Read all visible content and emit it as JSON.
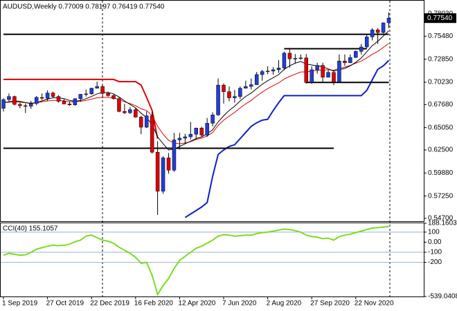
{
  "chart_data": [
    {
      "type": "candlestick",
      "title": "AUDUSD,Weekly  0.77009 0.78197 0.76419 0.77540",
      "open": [
        0.6725,
        0.6825,
        0.686,
        0.677,
        0.6755,
        0.675,
        0.678,
        0.685,
        0.684,
        0.69,
        0.686,
        0.6805,
        0.6775,
        0.6765,
        0.6835,
        0.6885,
        0.689,
        0.6955,
        0.6975,
        0.6895,
        0.687,
        0.6835,
        0.669,
        0.6675,
        0.671,
        0.6625,
        0.651,
        0.664,
        0.6225,
        0.578,
        0.616,
        0.602,
        0.6365,
        0.6385,
        0.64,
        0.643,
        0.65,
        0.642,
        0.6555,
        0.665,
        0.699,
        0.6915,
        0.6845,
        0.686,
        0.6955,
        0.6975,
        0.6995,
        0.711,
        0.7145,
        0.715,
        0.7165,
        0.7185,
        0.7355,
        0.729,
        0.7295,
        0.73,
        0.702,
        0.7165,
        0.7215,
        0.708,
        0.7135,
        0.7025,
        0.7265,
        0.7245,
        0.7305,
        0.7375,
        0.7425,
        0.754,
        0.762,
        0.759,
        0.77009
      ],
      "high": [
        0.684,
        0.6895,
        0.687,
        0.679,
        0.678,
        0.681,
        0.6865,
        0.6895,
        0.693,
        0.6915,
        0.6875,
        0.683,
        0.68,
        0.684,
        0.689,
        0.694,
        0.696,
        0.703,
        0.699,
        0.6915,
        0.6885,
        0.685,
        0.6775,
        0.674,
        0.673,
        0.664,
        0.669,
        0.6685,
        0.635,
        0.618,
        0.6215,
        0.6445,
        0.6445,
        0.6435,
        0.657,
        0.6505,
        0.6515,
        0.6615,
        0.668,
        0.7065,
        0.701,
        0.6975,
        0.6935,
        0.6975,
        0.704,
        0.7065,
        0.714,
        0.7165,
        0.7205,
        0.7195,
        0.7275,
        0.737,
        0.7415,
        0.7345,
        0.734,
        0.7345,
        0.7205,
        0.7245,
        0.7245,
        0.716,
        0.715,
        0.734,
        0.734,
        0.734,
        0.7385,
        0.746,
        0.7565,
        0.764,
        0.764,
        0.7705,
        0.78197
      ],
      "low": [
        0.669,
        0.6805,
        0.676,
        0.6725,
        0.667,
        0.672,
        0.676,
        0.682,
        0.681,
        0.685,
        0.679,
        0.677,
        0.6755,
        0.6755,
        0.68,
        0.686,
        0.688,
        0.695,
        0.685,
        0.686,
        0.6825,
        0.668,
        0.666,
        0.666,
        0.662,
        0.643,
        0.65,
        0.621,
        0.551,
        0.575,
        0.598,
        0.6,
        0.6255,
        0.632,
        0.637,
        0.637,
        0.6405,
        0.64,
        0.652,
        0.664,
        0.678,
        0.6805,
        0.679,
        0.683,
        0.695,
        0.694,
        0.699,
        0.704,
        0.7115,
        0.711,
        0.713,
        0.716,
        0.719,
        0.7235,
        0.728,
        0.7005,
        0.7005,
        0.712,
        0.702,
        0.708,
        0.699,
        0.703,
        0.721,
        0.724,
        0.73,
        0.734,
        0.741,
        0.75,
        0.746,
        0.758,
        0.76419
      ],
      "close": [
        0.6825,
        0.686,
        0.677,
        0.6755,
        0.675,
        0.678,
        0.685,
        0.684,
        0.69,
        0.686,
        0.6805,
        0.6775,
        0.6765,
        0.6835,
        0.6885,
        0.689,
        0.6955,
        0.6975,
        0.6895,
        0.687,
        0.6835,
        0.669,
        0.6675,
        0.671,
        0.6625,
        0.651,
        0.664,
        0.6225,
        0.578,
        0.616,
        0.602,
        0.6365,
        0.6385,
        0.64,
        0.643,
        0.65,
        0.642,
        0.6555,
        0.665,
        0.699,
        0.6915,
        0.6845,
        0.686,
        0.6955,
        0.6975,
        0.6995,
        0.711,
        0.7145,
        0.715,
        0.7165,
        0.7185,
        0.7355,
        0.729,
        0.7295,
        0.73,
        0.702,
        0.7165,
        0.7215,
        0.708,
        0.7135,
        0.7025,
        0.7265,
        0.7245,
        0.7305,
        0.7375,
        0.7425,
        0.754,
        0.762,
        0.759,
        0.77,
        0.7754
      ],
      "up_color": "#1f3fd6",
      "down_color": "#e00000",
      "wick_color": "#000000",
      "overlays": [
        {
          "color": "#e00000",
          "line_width": 2,
          "values": [
            0.7055,
            0.7055,
            0.7055,
            0.7055,
            0.7055,
            0.7055,
            0.7055,
            0.7055,
            0.7055,
            0.7055,
            0.7055,
            0.7055,
            0.7055,
            0.7055,
            0.7055,
            0.7055,
            0.7055,
            0.7055,
            0.7055,
            0.7055,
            0.7055,
            0.703,
            0.703,
            0.703,
            0.703,
            0.699,
            0.685,
            0.67,
            0.638,
            null,
            null,
            null,
            null,
            null,
            null,
            null,
            null,
            null,
            null,
            null,
            null,
            null,
            null,
            null,
            null,
            null,
            null,
            null,
            null,
            null,
            null,
            null,
            null,
            null,
            null,
            null,
            null,
            null,
            null,
            null,
            null,
            null,
            null,
            null,
            null,
            null,
            null,
            null,
            null,
            null,
            null
          ]
        },
        {
          "color": "#e00000",
          "line_width": 1,
          "values": [
            0.679,
            0.6795,
            0.68,
            0.6795,
            0.679,
            0.6785,
            0.679,
            0.68,
            0.681,
            0.6815,
            0.6815,
            0.681,
            0.68,
            0.68,
            0.6805,
            0.6815,
            0.683,
            0.6845,
            0.685,
            0.685,
            0.6845,
            0.6825,
            0.68,
            0.678,
            0.6755,
            0.672,
            0.67,
            0.664,
            0.652,
            0.643,
            0.636,
            0.633,
            0.632,
            0.633,
            0.6345,
            0.637,
            0.6385,
            0.641,
            0.645,
            0.653,
            0.659,
            0.6635,
            0.668,
            0.673,
            0.6775,
            0.6815,
            0.6865,
            0.691,
            0.695,
            0.6985,
            0.7015,
            0.706,
            0.709,
            0.7115,
            0.714,
            0.714,
            0.715,
            0.716,
            0.716,
            0.7165,
            0.716,
            0.718,
            0.7195,
            0.7215,
            0.724,
            0.7265,
            0.73,
            0.734,
            0.7375,
            0.742,
            0.7465
          ]
        },
        {
          "color": "#000000",
          "line_width": 1,
          "values": [
            0.679,
            0.68,
            0.681,
            0.6805,
            0.679,
            0.678,
            0.679,
            0.681,
            0.683,
            0.6845,
            0.6845,
            0.6835,
            0.6815,
            0.6805,
            0.6815,
            0.6835,
            0.686,
            0.689,
            0.6905,
            0.6905,
            0.689,
            0.6855,
            0.681,
            0.677,
            0.673,
            0.667,
            0.662,
            0.654,
            0.64,
            0.632,
            0.625,
            0.626,
            0.629,
            0.632,
            0.635,
            0.638,
            0.64,
            0.6435,
            0.648,
            0.657,
            0.664,
            0.67,
            0.675,
            0.681,
            0.686,
            0.69,
            0.695,
            0.7,
            0.704,
            0.7075,
            0.711,
            0.717,
            0.721,
            0.724,
            0.726,
            0.723,
            0.722,
            0.721,
            0.72,
            0.7175,
            0.715,
            0.7165,
            0.718,
            0.721,
            0.725,
            0.73,
            0.737,
            0.744,
            0.749,
            0.755,
            0.761
          ]
        },
        {
          "color": "#0a1ecc",
          "line_width": 2,
          "values": [
            null,
            null,
            null,
            null,
            null,
            null,
            null,
            null,
            null,
            null,
            null,
            null,
            null,
            null,
            null,
            null,
            null,
            null,
            null,
            null,
            null,
            null,
            null,
            null,
            null,
            null,
            null,
            null,
            null,
            null,
            null,
            null,
            null,
            0.548,
            0.552,
            0.556,
            0.56,
            0.565,
            0.595,
            0.62,
            0.625,
            0.629,
            0.631,
            0.638,
            0.645,
            0.652,
            0.656,
            0.659,
            0.66,
            0.67,
            0.679,
            0.687,
            0.687,
            0.687,
            0.687,
            0.687,
            0.687,
            0.687,
            0.687,
            0.687,
            0.687,
            0.687,
            0.687,
            0.687,
            0.687,
            0.687,
            0.693,
            0.705,
            0.717,
            0.721,
            0.727
          ]
        },
        {
          "color": "#000000",
          "line_width": 2,
          "values": [
            0.757,
            0.757,
            0.757,
            0.757,
            0.757,
            0.757,
            0.757,
            0.757,
            0.757,
            0.757,
            0.757,
            0.757,
            0.757,
            0.757,
            0.757,
            0.757,
            0.757,
            0.757,
            0.757,
            0.757,
            0.757,
            0.757,
            0.757,
            0.757,
            0.757,
            0.757,
            0.757,
            0.757,
            0.757,
            0.757,
            0.757,
            0.757,
            0.757,
            0.757,
            0.757,
            0.757,
            0.757,
            0.757,
            0.757,
            0.757,
            0.757,
            0.757,
            0.757,
            0.757,
            0.757,
            0.757,
            0.757,
            0.757,
            0.757,
            0.757,
            0.757,
            0.757,
            0.757,
            0.757,
            0.757,
            0.757,
            0.757,
            0.757,
            0.757,
            0.757,
            0.757,
            0.757,
            0.757,
            0.757,
            0.757,
            0.757,
            0.757,
            0.757,
            0.757,
            0.757,
            0.757
          ]
        },
        {
          "color": "#000000",
          "line_width": 2,
          "values": [
            0.627,
            0.627,
            0.627,
            0.627,
            0.627,
            0.627,
            0.627,
            0.627,
            0.627,
            0.627,
            0.627,
            0.627,
            0.627,
            0.627,
            0.627,
            0.627,
            0.627,
            0.627,
            0.627,
            0.627,
            0.627,
            0.627,
            0.627,
            0.627,
            0.627,
            0.627,
            0.627,
            0.627,
            0.627,
            0.627,
            0.627,
            0.627,
            0.627,
            0.627,
            0.627,
            0.627,
            0.627,
            0.627,
            0.627,
            0.627,
            0.627,
            0.627,
            0.627,
            0.627,
            0.627,
            0.627,
            0.627,
            0.627,
            0.627,
            0.627,
            0.627,
            0.627,
            0.627,
            0.627,
            0.627,
            0.627,
            0.627,
            0.627,
            0.627,
            0.627,
            0.627,
            null,
            null,
            null,
            null,
            null,
            null,
            null,
            null,
            null,
            null
          ]
        },
        {
          "color": "#000000",
          "line_width": 2,
          "values": [
            null,
            null,
            null,
            null,
            null,
            null,
            null,
            null,
            null,
            null,
            null,
            null,
            null,
            null,
            null,
            null,
            null,
            null,
            null,
            null,
            null,
            null,
            null,
            null,
            null,
            null,
            null,
            null,
            null,
            null,
            null,
            null,
            null,
            null,
            null,
            null,
            null,
            null,
            null,
            null,
            null,
            null,
            null,
            null,
            null,
            null,
            null,
            null,
            null,
            null,
            null,
            0.7405,
            0.7405,
            0.7405,
            0.7405,
            0.7405,
            0.7405,
            0.7405,
            0.7405,
            0.7405,
            0.7405,
            0.7405,
            0.7405,
            0.7405,
            0.7405,
            0.7405,
            0.7405,
            null,
            null,
            null,
            null
          ]
        },
        {
          "color": "#000000",
          "line_width": 2,
          "values": [
            null,
            null,
            null,
            null,
            null,
            null,
            null,
            null,
            null,
            null,
            null,
            null,
            null,
            null,
            null,
            null,
            null,
            null,
            null,
            null,
            null,
            null,
            null,
            null,
            null,
            null,
            null,
            null,
            null,
            null,
            null,
            null,
            null,
            null,
            null,
            null,
            null,
            null,
            null,
            null,
            null,
            null,
            null,
            null,
            null,
            null,
            null,
            null,
            null,
            null,
            null,
            null,
            null,
            null,
            null,
            0.702,
            0.702,
            0.702,
            0.702,
            0.702,
            0.702,
            0.702,
            0.702,
            0.702,
            0.702,
            0.702,
            0.702,
            0.702,
            0.702,
            0.702,
            0.702
          ]
        }
      ],
      "ylim": [
        0.5454,
        0.7945
      ],
      "yticks": [
        {
          "value": 0.7803,
          "label": "0.78030"
        },
        {
          "value": 0.7548,
          "label": "0.75480"
        },
        {
          "value": 0.7285,
          "label": "0.72850"
        },
        {
          "value": 0.7023,
          "label": "0.70230"
        },
        {
          "value": 0.6768,
          "label": "0.67680"
        },
        {
          "value": 0.6505,
          "label": "0.65050"
        },
        {
          "value": 0.625,
          "label": "0.62500"
        },
        {
          "value": 0.5988,
          "label": "0.59880"
        },
        {
          "value": 0.5725,
          "label": "0.57250"
        },
        {
          "value": 0.547,
          "label": "0.54700"
        }
      ],
      "current_price": {
        "value": 0.7754,
        "label": "0.77540"
      }
    },
    {
      "type": "line",
      "title": "CCI(40) 155.1057",
      "categories": [
        "1 Sep 2019",
        null,
        null,
        null,
        null,
        null,
        null,
        null,
        "27 Oct 2019",
        null,
        null,
        null,
        null,
        null,
        null,
        null,
        "22 Dec 2019",
        null,
        null,
        null,
        null,
        null,
        null,
        null,
        "16 Feb 2020",
        null,
        null,
        null,
        null,
        null,
        null,
        null,
        "12 Apr 2020",
        null,
        null,
        null,
        null,
        null,
        null,
        null,
        "7 Jun 2020",
        null,
        null,
        null,
        null,
        null,
        null,
        null,
        "2 Aug 2020",
        null,
        null,
        null,
        null,
        null,
        null,
        null,
        "27 Sep 2020",
        null,
        null,
        null,
        null,
        null,
        null,
        null,
        "22 Nov 2020",
        null,
        null,
        null,
        null,
        null,
        null
      ],
      "values": [
        -130,
        -110,
        -120,
        -130,
        -125,
        -100,
        -70,
        -55,
        -40,
        -30,
        -35,
        -30,
        -20,
        5,
        20,
        60,
        70,
        45,
        20,
        10,
        -10,
        -50,
        -80,
        -110,
        -150,
        -210,
        -200,
        -330,
        -520,
        -430,
        -360,
        -260,
        -180,
        -140,
        -100,
        -60,
        -40,
        -10,
        20,
        60,
        75,
        70,
        60,
        65,
        70,
        70,
        85,
        95,
        100,
        110,
        120,
        130,
        125,
        115,
        100,
        70,
        55,
        50,
        35,
        40,
        20,
        55,
        70,
        80,
        95,
        110,
        125,
        140,
        145,
        150,
        155.1057
      ],
      "color": "#7ddc1f",
      "ylim": [
        -539.0408,
        188.1603
      ],
      "yticks": [
        188.1603,
        100,
        {
          "value": 0,
          "label": "0.00"
        },
        -100,
        -200,
        -539.0408
      ],
      "levels": [
        100,
        -100,
        -200
      ]
    }
  ]
}
